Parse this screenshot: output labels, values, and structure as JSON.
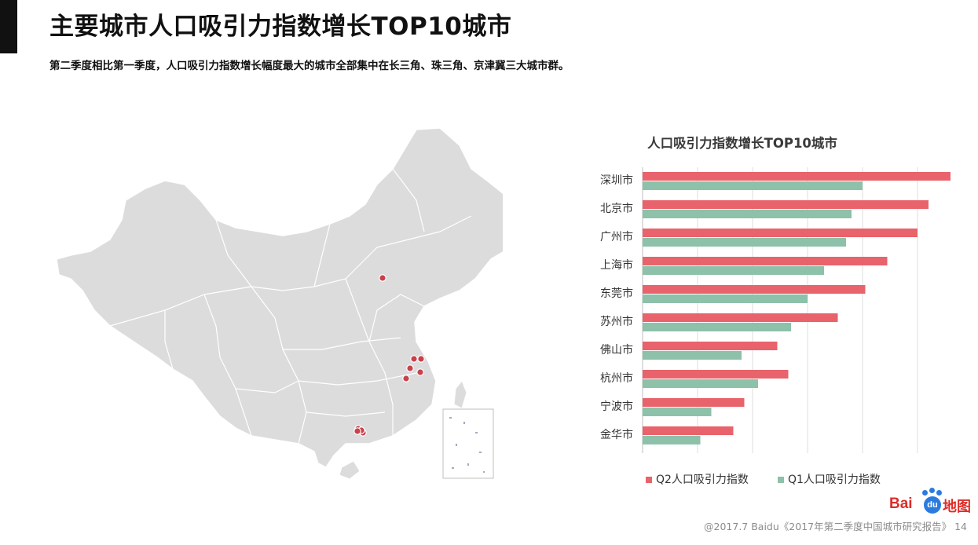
{
  "slide": {
    "title": "主要城市人口吸引力指数增长TOP10城市",
    "subtitle": "第二季度相比第一季度，人口吸引力指数增长幅度最大的城市全部集中在长三角、珠三角、京津冀三大城市群。"
  },
  "chart_data": {
    "type": "bar",
    "orientation": "horizontal",
    "title": "人口吸引力指数增长TOP10城市",
    "categories": [
      "深圳市",
      "北京市",
      "广州市",
      "上海市",
      "东莞市",
      "苏州市",
      "佛山市",
      "杭州市",
      "宁波市",
      "金华市"
    ],
    "series": [
      {
        "name": "Q2人口吸引力指数",
        "color": "#e8636b",
        "values": [
          5.6,
          5.2,
          5.0,
          4.45,
          4.05,
          3.55,
          2.45,
          2.65,
          1.85,
          1.65
        ]
      },
      {
        "name": "Q1人口吸引力指数",
        "color": "#8dc1a9",
        "values": [
          4.0,
          3.8,
          3.7,
          3.3,
          3.0,
          2.7,
          1.8,
          2.1,
          1.25,
          1.05
        ]
      }
    ],
    "xlim": [
      0,
      6
    ],
    "grid": true,
    "legend_position": "bottom"
  },
  "map": {
    "fill_color": "#dcdcdc",
    "marker_color": "#c8414b",
    "markers": [
      "北京市",
      "上海市",
      "苏州市",
      "杭州市",
      "宁波市",
      "金华市",
      "深圳市",
      "广州市",
      "东莞市",
      "佛山市"
    ]
  },
  "footer": {
    "logo_text": "Bai",
    "logo_badge": "du",
    "logo_suffix": "地图",
    "source": "@2017.7 Baidu《2017年第二季度中国城市研究报告》",
    "page_number": "14"
  }
}
